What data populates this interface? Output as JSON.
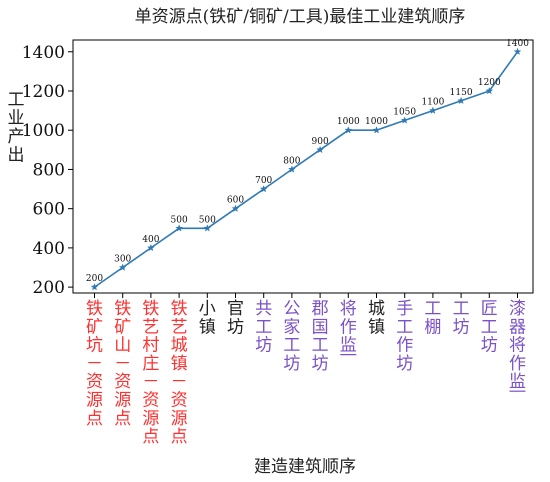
{
  "chart_data": {
    "type": "line",
    "title": "单资源点(铁矿/铜矿/工具)最佳工业建筑顺序",
    "xlabel": "建造建筑顺序",
    "ylabel": "工业产出",
    "ylim": [
      170,
      1460
    ],
    "yticks": [
      200,
      400,
      600,
      800,
      1000,
      1200,
      1400
    ],
    "grid": false,
    "legend": "none",
    "categories": [
      "铁矿坑－资源点",
      "铁矿山－资源点",
      "铁艺村庄－资源点",
      "铁艺城镇－资源点",
      "小镇",
      "官坊",
      "共工坊",
      "公家工坊",
      "郡国工坊",
      "将作监",
      "城镇",
      "手工作坊",
      "工棚",
      "工坊",
      "匠工坊",
      "漆器将作监"
    ],
    "category_colors": [
      "#ff3030",
      "#ff3030",
      "#ff3030",
      "#ff3030",
      "#222222",
      "#222222",
      "#7b52c9",
      "#7b52c9",
      "#7b52c9",
      "#7b52c9",
      "#222222",
      "#7b52c9",
      "#7b52c9",
      "#7b52c9",
      "#7b52c9",
      "#7b52c9"
    ],
    "underlined_categories": [
      9,
      15
    ],
    "series": [
      {
        "values": [
          200,
          300,
          400,
          500,
          500,
          600,
          700,
          800,
          900,
          1000,
          1000,
          1050,
          1100,
          1150,
          1200,
          1400
        ],
        "color": "#2f7ab5",
        "marker": "star"
      }
    ]
  }
}
